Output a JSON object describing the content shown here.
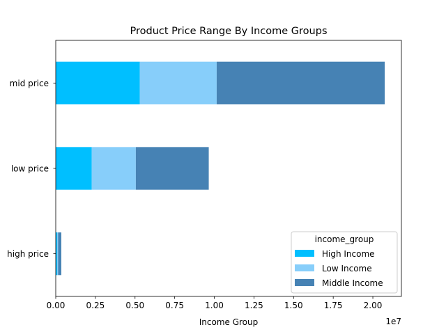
{
  "chart_data": {
    "type": "bar",
    "orientation": "horizontal",
    "stacked": true,
    "title": "Product Price Range By Income Groups",
    "xlabel": "Income Group",
    "ylabel": "",
    "x_offset_label": "1e7",
    "xlim": [
      0,
      21800000
    ],
    "xticks": [
      0,
      2500000,
      5000000,
      7500000,
      10000000,
      12500000,
      15000000,
      17500000,
      20000000
    ],
    "xtick_labels": [
      "0.00",
      "0.25",
      "0.50",
      "0.75",
      "1.00",
      "1.25",
      "1.50",
      "1.75",
      "2.00"
    ],
    "categories": [
      "high price",
      "low price",
      "mid price"
    ],
    "legend_title": "income_group",
    "legend_position": "lower-right",
    "grid": false,
    "series": [
      {
        "name": "High Income",
        "color": "#00bfff",
        "values": [
          100000,
          2270000,
          5300000
        ]
      },
      {
        "name": "Low Income",
        "color": "#87cefa",
        "values": [
          50000,
          2780000,
          4850000
        ]
      },
      {
        "name": "Middle Income",
        "color": "#4682b4",
        "values": [
          200000,
          4600000,
          10600000
        ]
      }
    ]
  }
}
